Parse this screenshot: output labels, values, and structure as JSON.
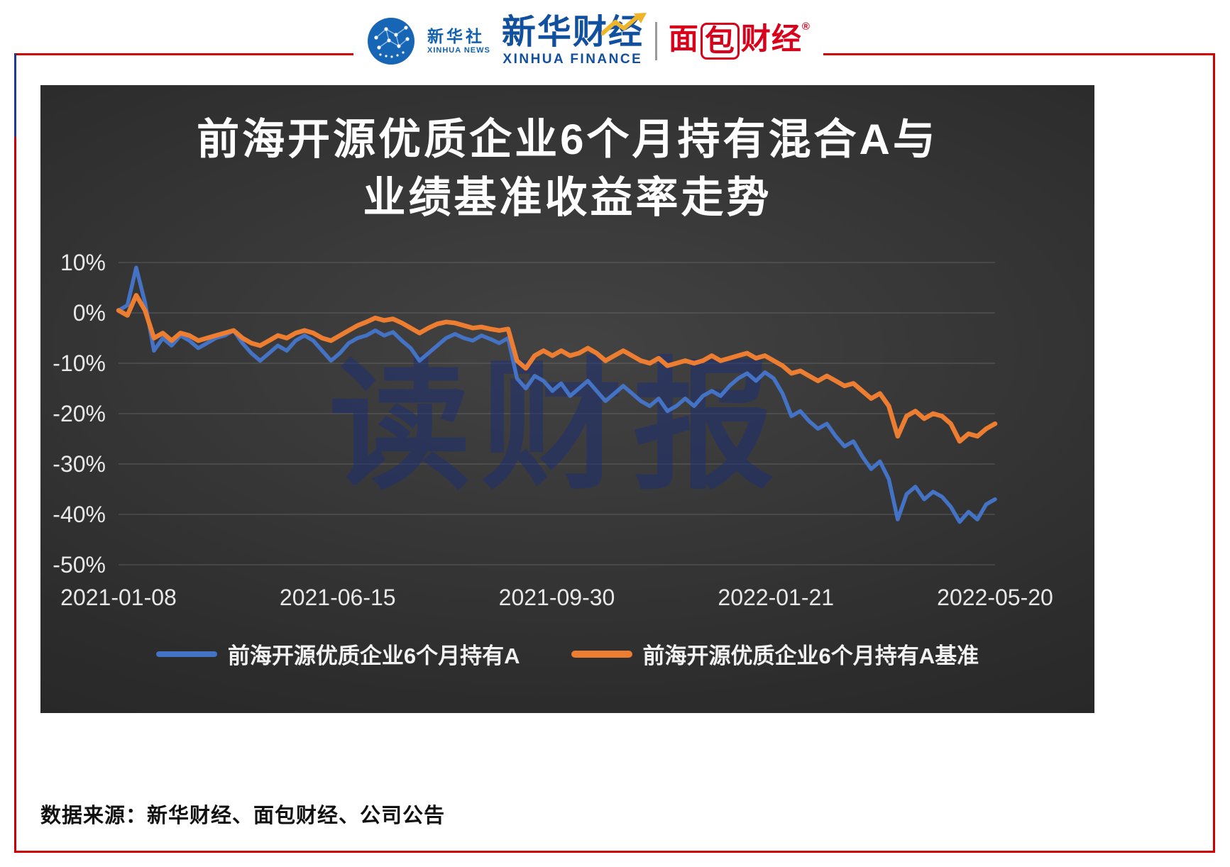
{
  "page": {
    "frame_color": "#d10000",
    "frame_accent_color": "#1e3a8f",
    "panel_bg": "#2c2c2c"
  },
  "header": {
    "xinhua_news": {
      "cn": "新华社",
      "en": "XINHUA NEWS"
    },
    "xinhua_finance": {
      "cn": "新华财经",
      "en": "XINHUA FINANCE"
    },
    "mianbao": {
      "left": "面",
      "boxed": "包",
      "right": "财经",
      "reg": "®"
    }
  },
  "chart_data": {
    "type": "line",
    "title_lines": [
      "前海开源优质企业6个月持有混合A与",
      "业绩基准收益率走势"
    ],
    "watermark": "读财报",
    "watermark_color": "#1b2f78",
    "grid": true,
    "legend_position": "bottom",
    "ylim": [
      -50,
      10
    ],
    "y_ticks": [
      "10%",
      "0%",
      "-10%",
      "-20%",
      "-30%",
      "-40%",
      "-50%"
    ],
    "x_tick_labels": [
      "2021-01-08",
      "2021-06-15",
      "2021-09-30",
      "2022-01-21",
      "2022-05-20"
    ],
    "ylabel": "",
    "xlabel": "",
    "series": [
      {
        "name": "前海开源优质企业6个月持有A",
        "color": "#4472C4",
        "values": [
          0.5,
          1.5,
          9,
          2,
          -7.5,
          -5,
          -6.5,
          -4.5,
          -5.5,
          -7,
          -6,
          -5,
          -4.5,
          -3.5,
          -6,
          -8,
          -9.5,
          -8,
          -6.5,
          -7.5,
          -5.5,
          -4.5,
          -5.5,
          -7.5,
          -9.5,
          -8,
          -6,
          -5,
          -4.5,
          -3.5,
          -4.5,
          -3.8,
          -5.5,
          -7,
          -9.5,
          -8,
          -6.5,
          -5,
          -4.2,
          -5,
          -5.5,
          -4.5,
          -5.2,
          -6,
          -5,
          -13,
          -15,
          -12.5,
          -13.5,
          -15.5,
          -14,
          -16.5,
          -15,
          -13.5,
          -15.5,
          -17.5,
          -16,
          -14.5,
          -16,
          -17.5,
          -18.5,
          -17,
          -19.5,
          -18.5,
          -17,
          -18.5,
          -16.5,
          -15.5,
          -16.5,
          -14.5,
          -13,
          -12,
          -13.5,
          -11.8,
          -13,
          -16,
          -20.5,
          -19.5,
          -21.5,
          -23,
          -22,
          -24.5,
          -26.5,
          -25.5,
          -28.5,
          -31,
          -29.5,
          -33,
          -41,
          -36,
          -34.5,
          -37,
          -35.5,
          -36.5,
          -38.5,
          -41.5,
          -39.5,
          -41,
          -38,
          -37
        ]
      },
      {
        "name": "前海开源优质企业6个月持有A基准",
        "color": "#ED7D31",
        "values": [
          0.5,
          -0.5,
          3.5,
          0.5,
          -5,
          -4,
          -5.5,
          -4,
          -4.5,
          -5.5,
          -5,
          -4.5,
          -4,
          -3.5,
          -5,
          -6,
          -6.5,
          -5.5,
          -4.5,
          -5,
          -4,
          -3.5,
          -4,
          -5,
          -5.5,
          -4.5,
          -3.5,
          -2.5,
          -1.8,
          -1,
          -1.5,
          -1.2,
          -2,
          -3,
          -4,
          -3,
          -2.2,
          -1.8,
          -2,
          -2.5,
          -3,
          -2.8,
          -3.2,
          -3.5,
          -3.2,
          -9.5,
          -11,
          -8.5,
          -7.5,
          -8.5,
          -7.5,
          -8.5,
          -8,
          -7,
          -8,
          -9.5,
          -8.5,
          -7.5,
          -8.5,
          -9.5,
          -10,
          -9,
          -10.5,
          -10,
          -9.5,
          -10,
          -9.5,
          -8.5,
          -9.5,
          -9,
          -8.5,
          -8,
          -9,
          -8.5,
          -9.5,
          -10.5,
          -12,
          -11.5,
          -12.5,
          -13.5,
          -12.5,
          -13.5,
          -14.5,
          -14,
          -15.5,
          -17,
          -16,
          -18.5,
          -24.5,
          -20.5,
          -19.5,
          -21,
          -20,
          -20.5,
          -22,
          -25.5,
          -24,
          -24.5,
          -23,
          -22
        ]
      }
    ]
  },
  "footer": {
    "source": "数据来源：新华财经、面包财经、公司公告"
  }
}
